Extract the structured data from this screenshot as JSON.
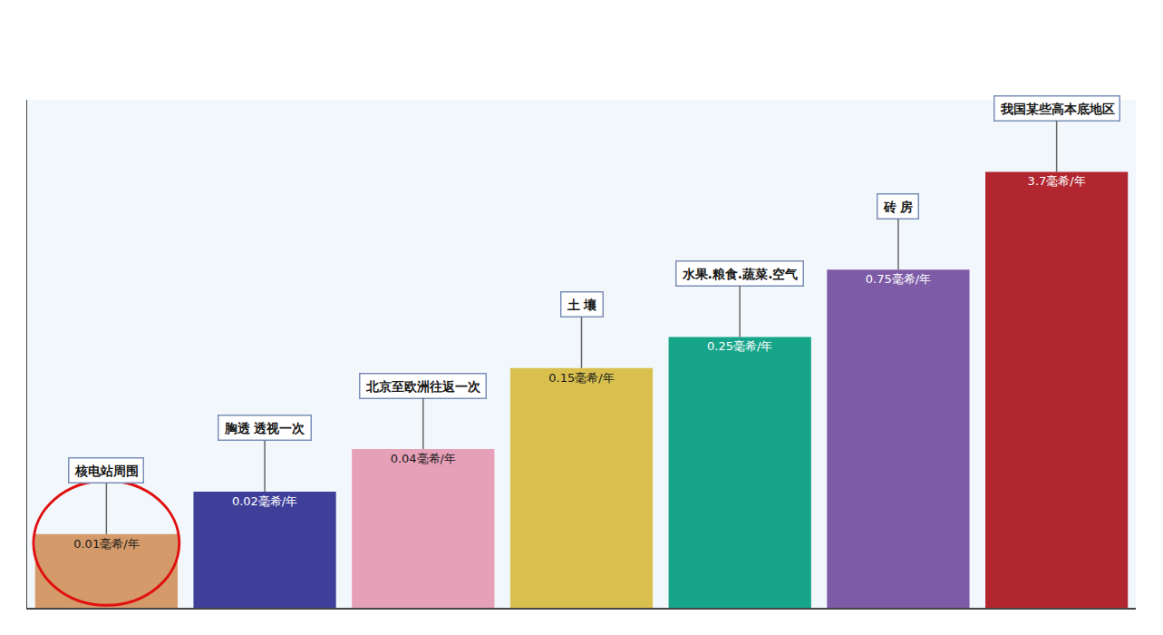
{
  "chart_data": {
    "type": "bar",
    "categories": [
      "核电站周围",
      "胸透 透视一次",
      "北京至欧洲往返一次",
      "土 壤",
      "水果.粮食.蔬菜.空气",
      "砖 房",
      "我国某些高本底地区"
    ],
    "values": [
      0.01,
      0.02,
      0.04,
      0.15,
      0.25,
      0.75,
      3.7
    ],
    "value_labels": [
      "0.01毫希/年",
      "0.02毫希/年",
      "0.04毫希/年",
      "0.15毫希/年",
      "0.25毫希/年",
      "0.75毫希/年",
      "3.7毫希/年"
    ],
    "colors": [
      "#d49a6a",
      "#3f3f99",
      "#e6a0b8",
      "#d8bf4e",
      "#17a589",
      "#7d5ba6",
      "#b22630"
    ],
    "log": "y",
    "ylim": [
      0.003,
      12
    ],
    "grid": false,
    "data_labels": true,
    "tick_labels": false
  }
}
